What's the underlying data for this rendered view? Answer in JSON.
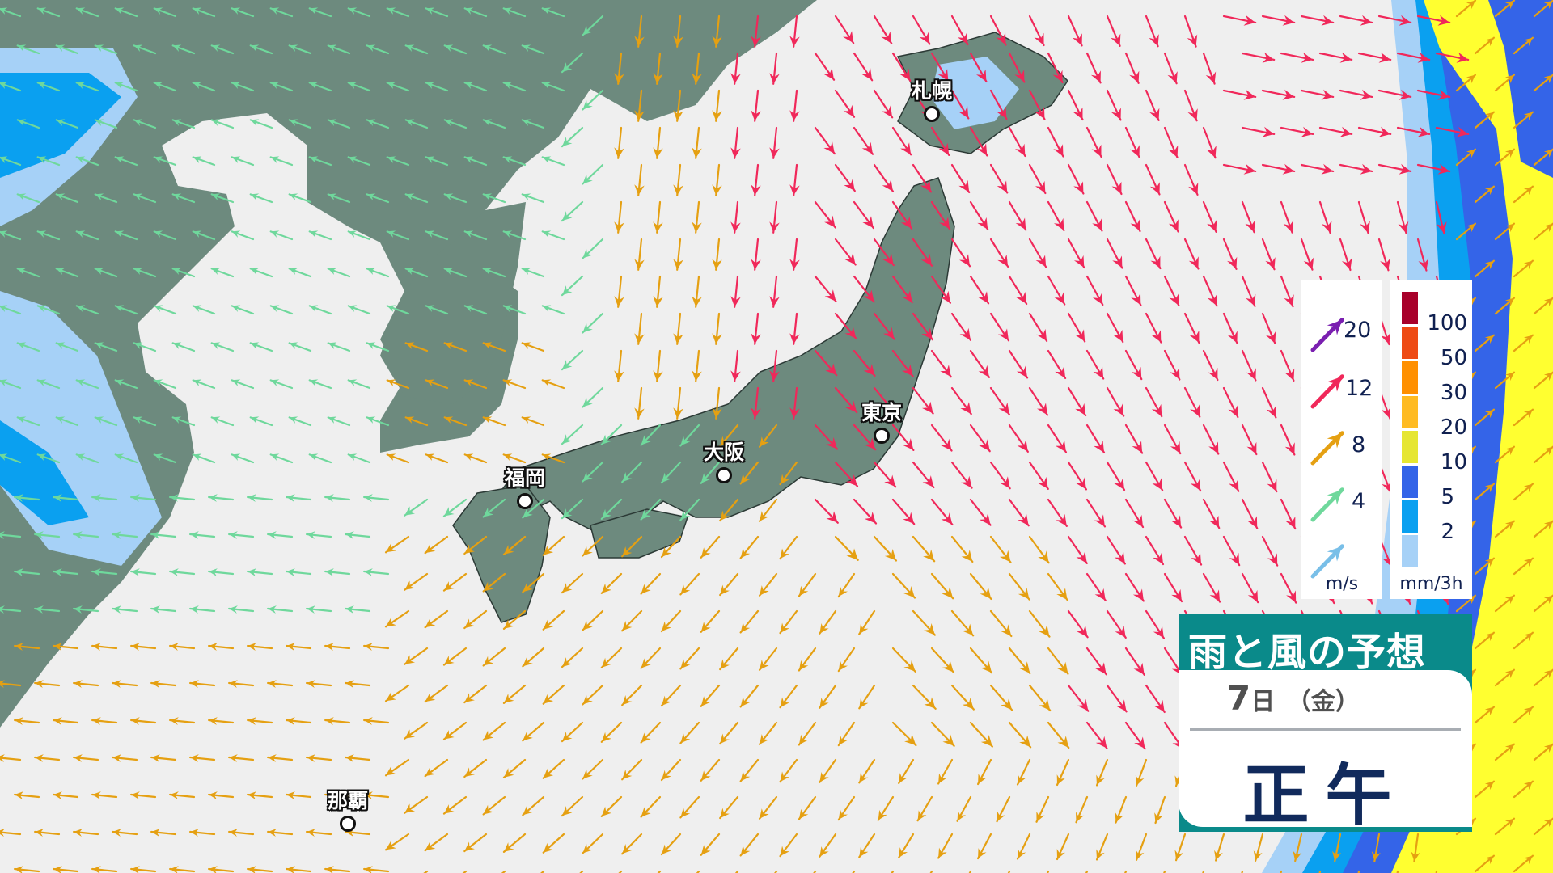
{
  "map": {
    "colors": {
      "sea": "#efefef",
      "land": "#6d8a7e",
      "rain_light": "#a6d1f7",
      "rain_2": "#0aa0f0",
      "rain_5": "#3464e8",
      "rain_10": "#ffff30"
    },
    "cities": [
      {
        "name": "札幌",
        "key": "sapporo"
      },
      {
        "name": "東京",
        "key": "tokyo"
      },
      {
        "name": "大阪",
        "key": "osaka"
      },
      {
        "name": "福岡",
        "key": "fukuoka"
      },
      {
        "name": "那覇",
        "key": "naha"
      }
    ]
  },
  "wind_legend": {
    "unit": "m/s",
    "levels": [
      {
        "value": "20",
        "color": "#7a1fb0"
      },
      {
        "value": "12",
        "color": "#f0285a"
      },
      {
        "value": "8",
        "color": "#e5a012"
      },
      {
        "value": "4",
        "color": "#6fd89c"
      },
      {
        "value": "",
        "color": "#79bfe8"
      }
    ]
  },
  "rain_legend": {
    "unit": "mm/3h",
    "colors": [
      "#a8002a",
      "#ee4a14",
      "#ff9000",
      "#ffbb22",
      "#e6e632",
      "#3464e8",
      "#0aa0f0",
      "#a6d1f7"
    ],
    "labels": [
      "100",
      "50",
      "30",
      "20",
      "10",
      "5",
      "2"
    ]
  },
  "title_box": {
    "title": "雨と風の予想",
    "day": "7",
    "day_suffix": "日",
    "weekday": "（金）",
    "time": "正午"
  }
}
